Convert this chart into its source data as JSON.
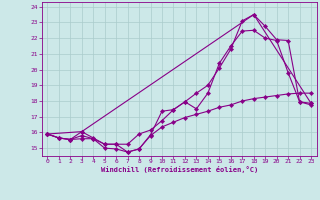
{
  "xlabel": "Windchill (Refroidissement éolien,°C)",
  "bg_color": "#cce8e8",
  "line_color": "#880088",
  "grid_color": "#aacccc",
  "xlim": [
    -0.5,
    23.5
  ],
  "ylim": [
    14.5,
    24.3
  ],
  "yticks": [
    15,
    16,
    17,
    18,
    19,
    20,
    21,
    22,
    23,
    24
  ],
  "xticks": [
    0,
    1,
    2,
    3,
    4,
    5,
    6,
    7,
    8,
    9,
    10,
    11,
    12,
    13,
    14,
    15,
    16,
    17,
    18,
    19,
    20,
    21,
    22,
    23
  ],
  "line1_x": [
    0,
    1,
    2,
    3,
    4,
    5,
    6,
    7,
    8,
    9,
    10,
    11,
    12,
    13,
    14,
    15,
    16,
    17,
    18,
    19,
    20,
    21,
    22,
    23
  ],
  "line1_y": [
    15.9,
    15.65,
    15.55,
    15.8,
    15.6,
    15.0,
    14.95,
    14.75,
    14.95,
    15.85,
    17.35,
    17.45,
    17.95,
    17.5,
    18.5,
    20.4,
    21.5,
    22.45,
    22.5,
    22.0,
    21.85,
    19.8,
    17.95,
    17.75
  ],
  "line2_x": [
    0,
    1,
    2,
    3,
    4,
    5,
    6,
    7,
    8,
    9,
    10,
    11,
    12,
    13,
    14,
    15,
    16,
    17,
    18,
    19,
    20,
    21,
    22,
    23
  ],
  "line2_y": [
    15.9,
    15.65,
    15.55,
    16.05,
    15.65,
    15.25,
    15.25,
    15.25,
    15.9,
    16.15,
    16.75,
    17.45,
    17.95,
    18.5,
    19.0,
    20.1,
    21.3,
    23.1,
    23.5,
    22.75,
    21.9,
    21.85,
    17.95,
    17.85
  ],
  "line3_x": [
    0,
    3,
    18,
    23
  ],
  "line3_y": [
    15.9,
    16.05,
    23.5,
    17.85
  ],
  "line4_x": [
    0,
    1,
    2,
    3,
    4,
    5,
    6,
    7,
    8,
    9,
    10,
    11,
    12,
    13,
    14,
    15,
    16,
    17,
    18,
    19,
    20,
    21,
    22,
    23
  ],
  "line4_y": [
    15.9,
    15.65,
    15.55,
    15.6,
    15.6,
    15.25,
    15.25,
    14.75,
    14.95,
    15.8,
    16.35,
    16.65,
    16.95,
    17.15,
    17.35,
    17.6,
    17.75,
    18.0,
    18.15,
    18.25,
    18.35,
    18.45,
    18.5,
    18.5
  ]
}
